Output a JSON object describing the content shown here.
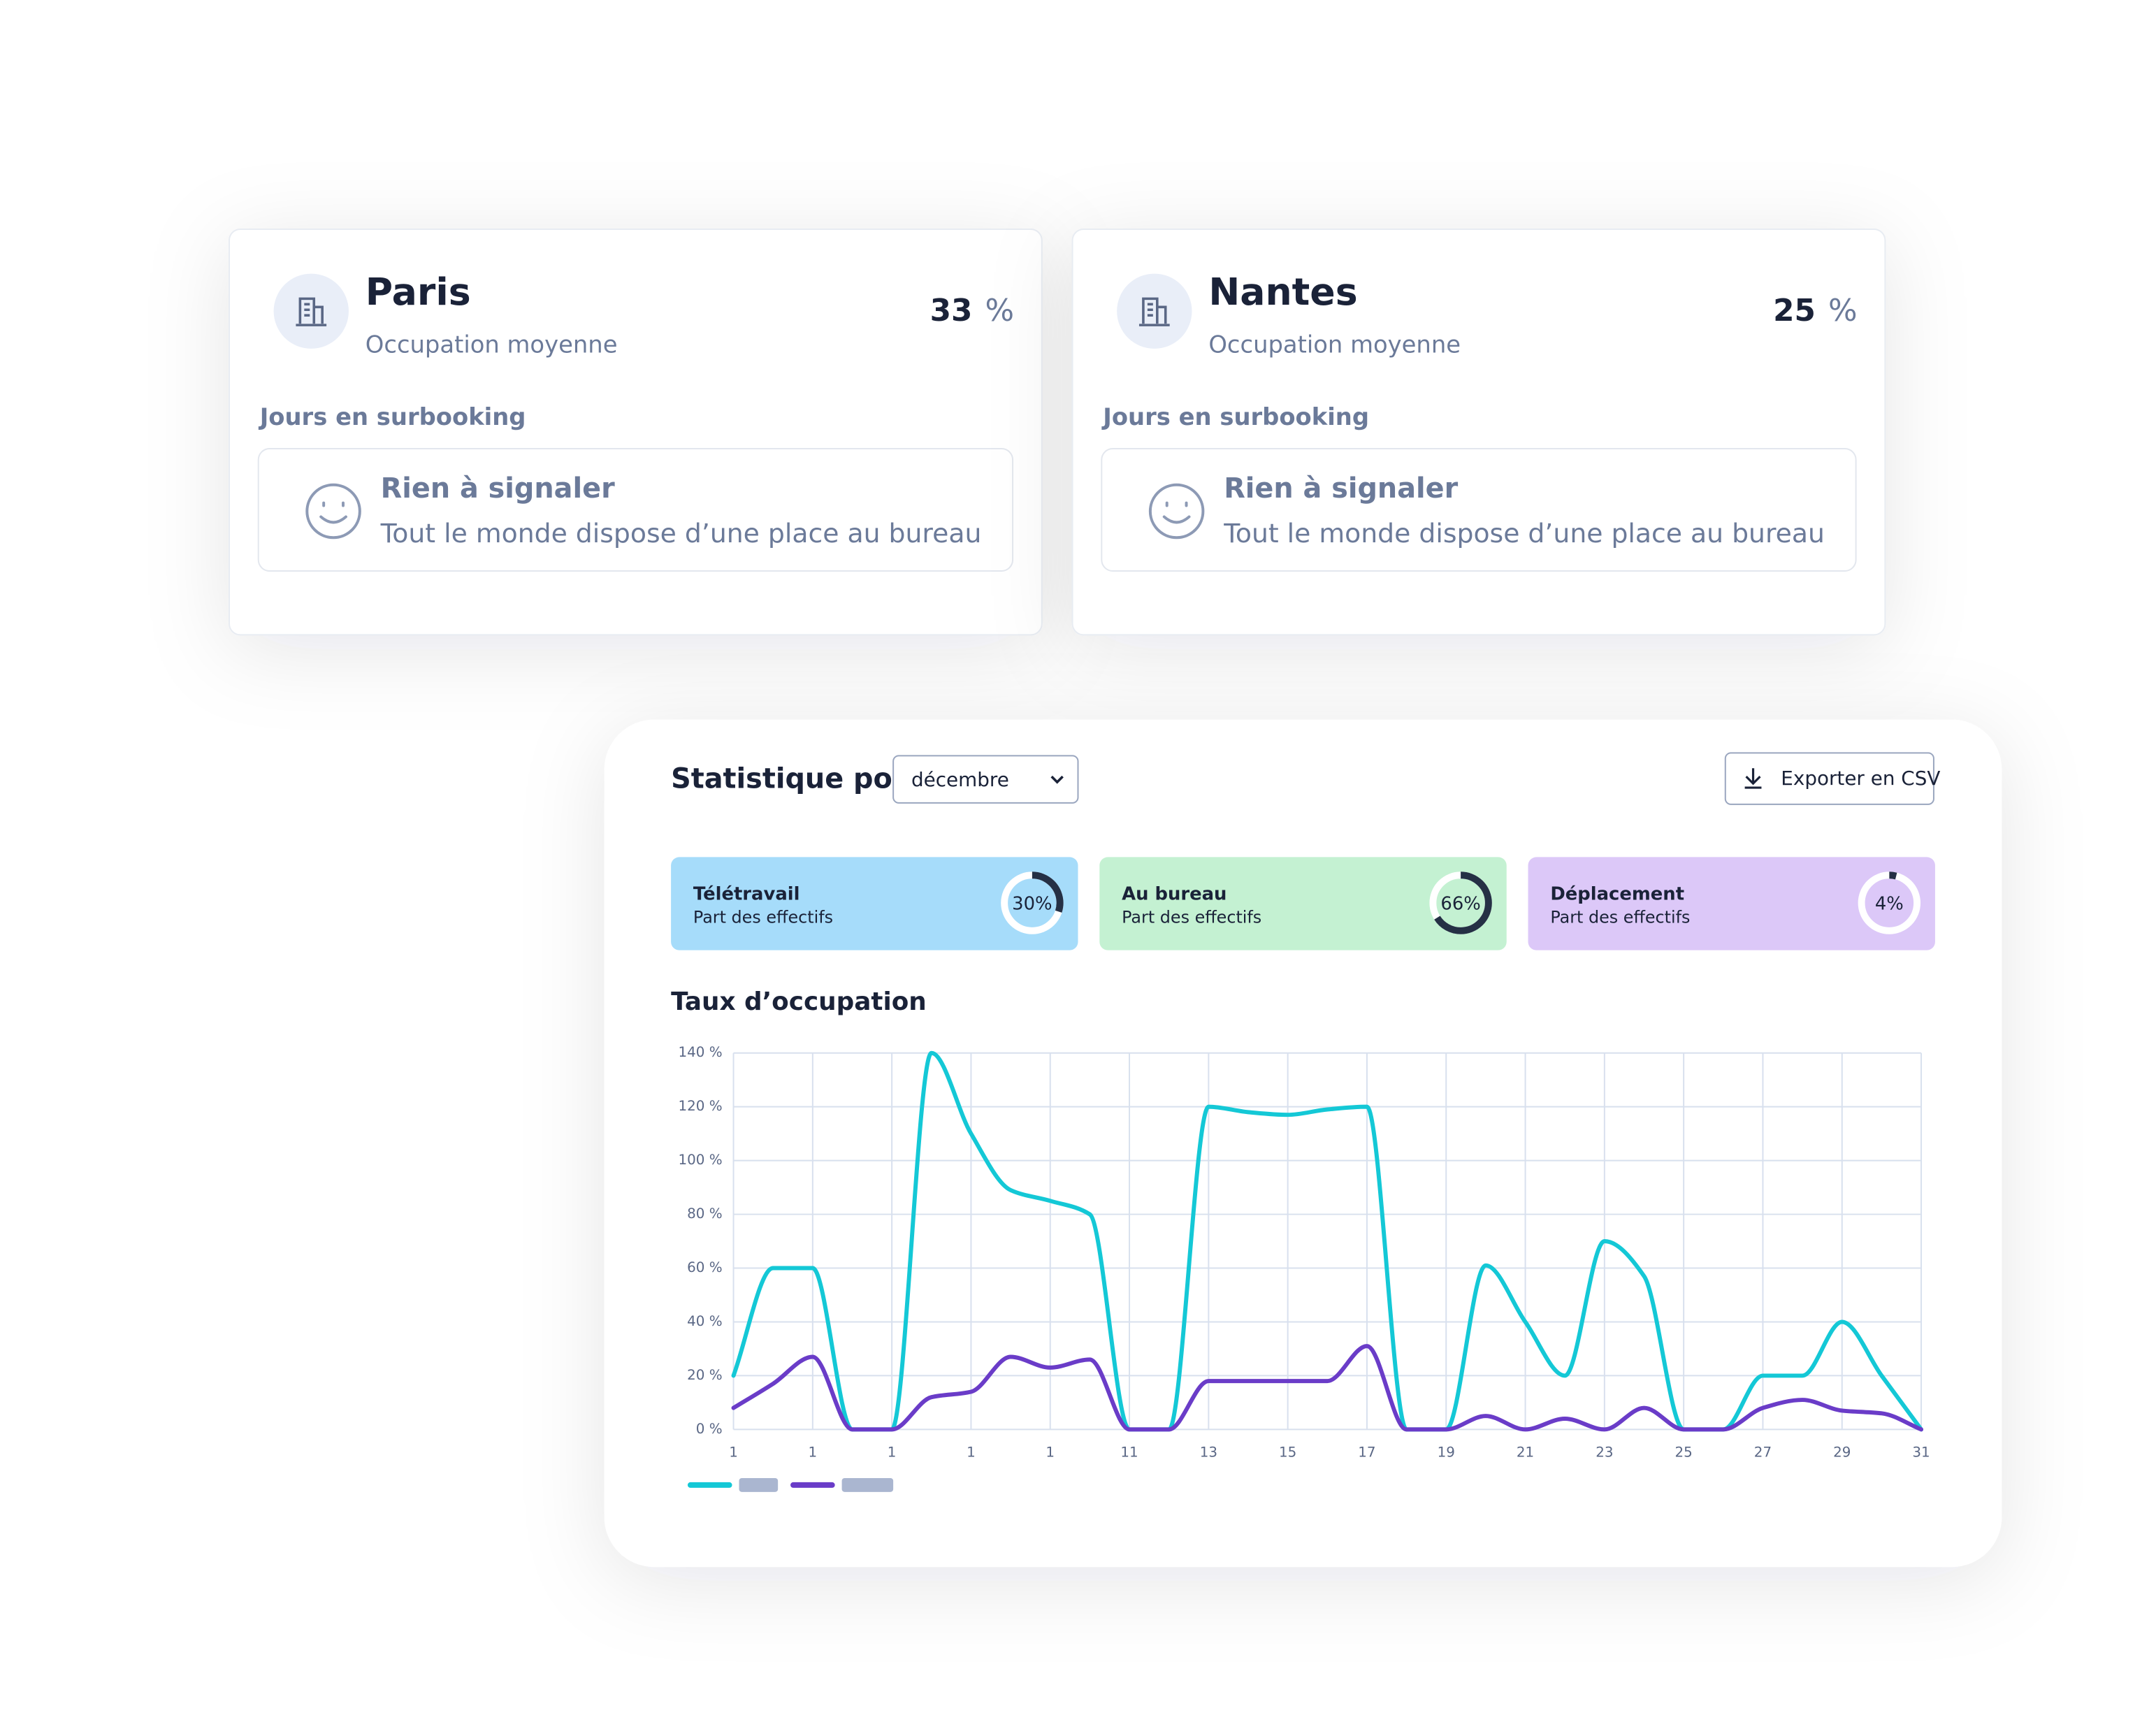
{
  "cards": [
    {
      "city": "Paris",
      "subtitle": "Occupation moyenne",
      "occupancy": 33,
      "unit": "%",
      "section": "Jours en surbooking",
      "status_title": "Rien à signaler",
      "status_text": "Tout le monde dispose d’une place au bureau"
    },
    {
      "city": "Nantes",
      "subtitle": "Occupation moyenne",
      "occupancy": 25,
      "unit": "%",
      "section": "Jours en surbooking",
      "status_title": "Rien à signaler",
      "status_text": "Tout le monde dispose d’une place au bureau"
    }
  ],
  "panel": {
    "title": "Statistique pour",
    "month": "décembre",
    "export": "Exporter en CSV",
    "stats": [
      {
        "title": "Télétravail",
        "subtitle": "Part des effectifs",
        "value": 30,
        "value_label": "30%",
        "color": "#a6dcfa"
      },
      {
        "title": "Au bureau",
        "subtitle": "Part des effectifs",
        "value": 66,
        "value_label": "66%",
        "color": "#c4f1d2"
      },
      {
        "title": "Déplacement",
        "subtitle": "Part des effectifs",
        "value": 4,
        "value_label": "4%",
        "color": "#dcc8f8"
      }
    ]
  },
  "chart_data": {
    "type": "line",
    "title": "Taux d’occupation",
    "categories": [
      "1",
      null,
      "1",
      null,
      "1",
      null,
      "1",
      null,
      "1",
      null,
      "11",
      null,
      "13",
      null,
      "15",
      null,
      "17",
      null,
      "19",
      null,
      "21",
      null,
      "23",
      null,
      "25",
      null,
      "27",
      null,
      "29",
      null,
      "31"
    ],
    "series": [
      {
        "color": "#14c8d6",
        "values": [
          20,
          60,
          60,
          0,
          0,
          140,
          110,
          89,
          85,
          80,
          0,
          0,
          120,
          118,
          117,
          119,
          120,
          0,
          0,
          61,
          40,
          20,
          70,
          57,
          0,
          0,
          20,
          20,
          40,
          20,
          0
        ]
      },
      {
        "color": "#6a3cc8",
        "values": [
          8,
          17,
          27,
          0,
          0,
          12,
          14,
          27,
          23,
          26,
          0,
          0,
          18,
          18,
          18,
          18,
          31,
          0,
          0,
          5,
          0,
          4,
          0,
          8,
          0,
          0,
          8,
          11,
          7,
          6,
          0
        ]
      }
    ],
    "ylim": [
      0,
      140
    ],
    "yticks": [
      {
        "value": 0,
        "label": "0 %"
      },
      {
        "value": 20,
        "label": "20 %"
      },
      {
        "value": 40,
        "label": "40 %"
      },
      {
        "value": 60,
        "label": "60 %"
      },
      {
        "value": 80,
        "label": "80 %"
      },
      {
        "value": 100,
        "label": "100 %"
      },
      {
        "value": 120,
        "label": "120 %"
      },
      {
        "value": 140,
        "label": "140 %"
      }
    ],
    "grid": true
  }
}
